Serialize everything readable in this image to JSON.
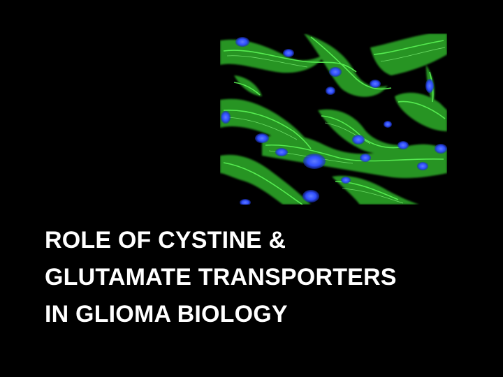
{
  "slide": {
    "background_color": "#000000",
    "title_lines": [
      "ROLE OF CYSTINE &",
      "GLUTAMATE TRANSPORTERS",
      "IN GLIOMA BIOLOGY"
    ],
    "title_color": "#ffffff"
  },
  "micrograph": {
    "subject": "fluorescence microscopy of glioma cells",
    "colors": {
      "cytoskeleton": "#3fe03a",
      "nuclei": "#2e4dff",
      "background": "#000000"
    }
  }
}
